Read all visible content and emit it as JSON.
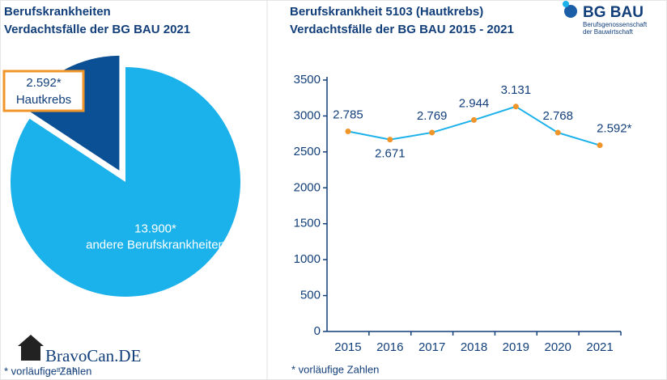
{
  "chart_data": [
    {
      "type": "pie",
      "title": "Berufskrankheiten",
      "subtitle": "Verdachtsfälle der BG BAU 2021",
      "categories": [
        "Hautkrebs",
        "andere Berufskrankheiten"
      ],
      "values": [
        2592,
        13900
      ],
      "value_labels": [
        "2.592*",
        "13.900*"
      ],
      "colors": [
        "#0b4f95",
        "#1bb1ea"
      ],
      "exploded": [
        true,
        false
      ],
      "note": "* vorläufige Zahlen"
    },
    {
      "type": "line",
      "title": "Berufskrankheit 5103 (Hautkrebs)",
      "subtitle": "Verdachtsfälle der BG BAU 2015 - 2021",
      "categories": [
        "2015",
        "2016",
        "2017",
        "2018",
        "2019",
        "2020",
        "2021"
      ],
      "values": [
        2785,
        2671,
        2769,
        2944,
        3131,
        2768,
        2592
      ],
      "value_labels": [
        "2.785",
        "2.671",
        "2.769",
        "2.944",
        "3.131",
        "2.768",
        "2.592*"
      ],
      "color": "#1bb1ea",
      "marker_color": "#f0952a",
      "ylim": [
        0,
        3500
      ],
      "yticks": [
        0,
        500,
        1000,
        1500,
        2000,
        2500,
        3000,
        3500
      ],
      "note": "* vorläufige Zahlen"
    }
  ],
  "logo": {
    "name": "BG BAU",
    "line1": "Berufsgenossenschaft",
    "line2": "der Bauwirtschaft"
  },
  "watermark": {
    "name": "BravoCan.DE",
    "sub": "B L O G"
  }
}
